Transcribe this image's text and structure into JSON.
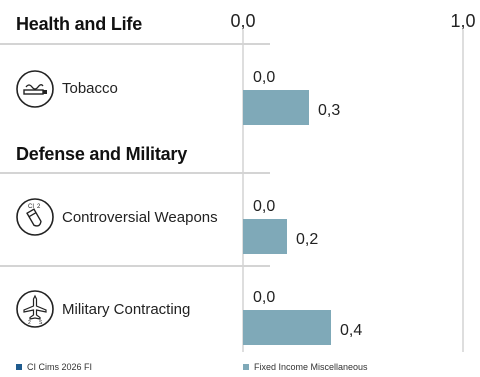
{
  "chart_data": {
    "type": "bar",
    "orientation": "horizontal",
    "xlim": [
      0,
      1.0
    ],
    "x_ticks": [
      "0,0",
      "1,0"
    ],
    "grid": true,
    "legend_placement": "bottom",
    "series": [
      {
        "name": "CI Cims 2026 FI",
        "color": "#1f5b8e"
      },
      {
        "name": "Fixed Income Miscellaneous",
        "color": "#7fa9b8"
      }
    ],
    "groups": [
      {
        "title": "Health and Life",
        "items": [
          {
            "label": "Tobacco",
            "icon": "tobacco-icon",
            "values": [
              0.0,
              0.3
            ],
            "value_labels": [
              "0,0",
              "0,3"
            ]
          }
        ]
      },
      {
        "title": "Defense and Military",
        "items": [
          {
            "label": "Controversial Weapons",
            "icon": "weapons-icon",
            "values": [
              0.0,
              0.2
            ],
            "value_labels": [
              "0,0",
              "0,2"
            ]
          },
          {
            "label": "Military Contracting",
            "icon": "aircraft-icon",
            "values": [
              0.0,
              0.4
            ],
            "value_labels": [
              "0,0",
              "0,4"
            ]
          }
        ]
      }
    ]
  }
}
